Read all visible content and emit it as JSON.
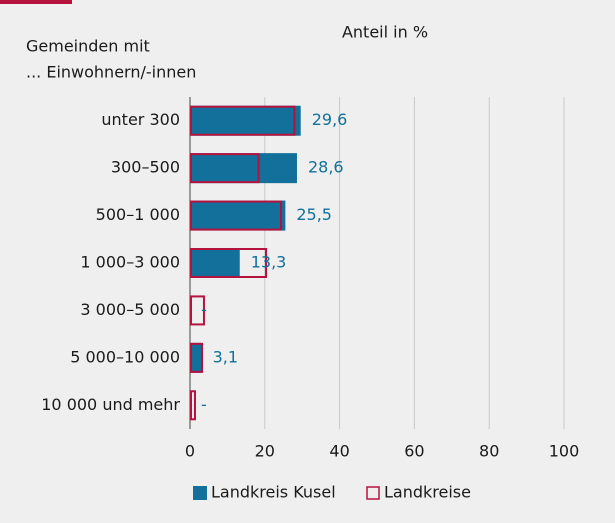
{
  "chart_data": {
    "type": "barh",
    "xlabel": "Anteil in %",
    "ylabel": [
      "Gemeinden mit",
      "... Einwohnern/-innen"
    ],
    "categories": [
      "unter 300",
      "300–500",
      "500–1 000",
      "1 000–3 000",
      "3 000–5 000",
      "5 000–10 000",
      "10 000 und mehr"
    ],
    "series": [
      {
        "name": "Landkreis Kusel",
        "color": "#12709a",
        "style": "filled",
        "values": [
          29.6,
          28.6,
          25.5,
          13.3,
          0,
          3.1,
          0
        ],
        "value_labels": [
          "29,6",
          "28,6",
          "25,5",
          "13,3",
          "-",
          "3,1",
          "-"
        ]
      },
      {
        "name": "Landkreise",
        "color": "#b5123e",
        "style": "outline",
        "values": [
          28.2,
          18.6,
          24.6,
          20.6,
          4.0,
          3.5,
          1.6
        ]
      }
    ],
    "xlim": [
      0,
      100
    ],
    "xticks": [
      0,
      20,
      40,
      60,
      80,
      100
    ],
    "grid": true
  }
}
